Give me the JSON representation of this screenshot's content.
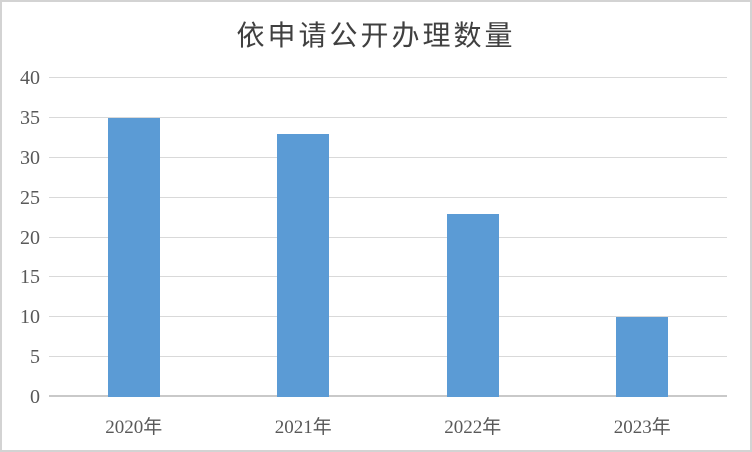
{
  "chart_data": {
    "type": "bar",
    "title": "依申请公开办理数量",
    "categories": [
      "2020年",
      "2021年",
      "2022年",
      "2023年"
    ],
    "values": [
      35,
      33,
      23,
      10
    ],
    "xlabel": "",
    "ylabel": "",
    "ylim": [
      0,
      40
    ],
    "yticks": [
      0,
      5,
      10,
      15,
      20,
      25,
      30,
      35,
      40
    ],
    "grid": true,
    "legend": false,
    "colors": {
      "bar": "#5B9BD5",
      "gridline": "#D9D9D9",
      "axis_line": "#C9C9C9",
      "tick_label": "#595959",
      "title": "#404040",
      "background": "#FFFFFF",
      "frame_border": "#D3D3D3"
    }
  }
}
